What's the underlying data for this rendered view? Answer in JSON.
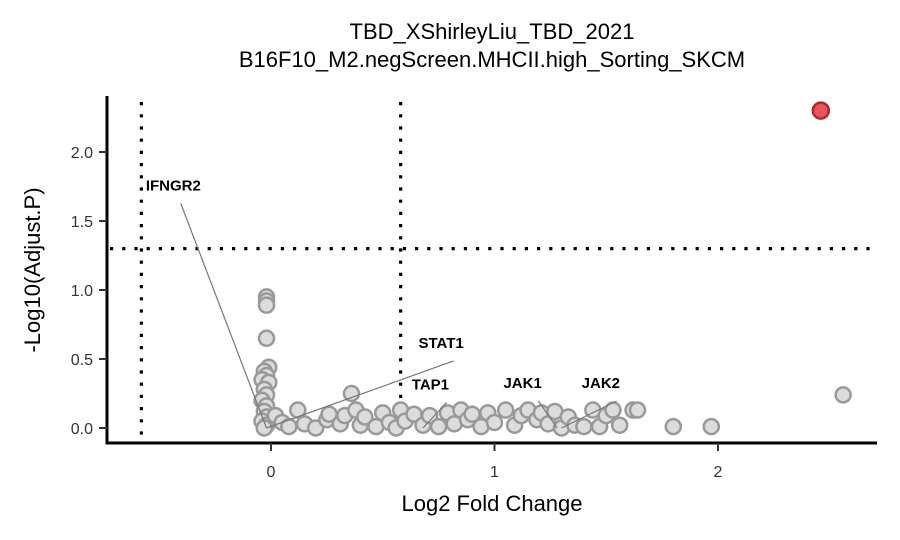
{
  "chart_data": {
    "type": "scatter",
    "title": "TBD_XShirleyLiu_TBD_2021",
    "subtitle": "B16F10_M2.negScreen.MHCII.high_Sorting_SKCM",
    "xlabel": "Log2 Fold Change",
    "ylabel": "-Log10(Adjust.P)",
    "xlim": [
      -0.75,
      2.7
    ],
    "ylim": [
      -0.1,
      2.4
    ],
    "x_ticks": [
      "0",
      "1",
      "2"
    ],
    "x_tick_values": [
      0,
      1,
      2
    ],
    "y_ticks": [
      "0.0",
      "0.5",
      "1.0",
      "1.5",
      "2.0"
    ],
    "y_tick_values": [
      0.0,
      0.5,
      1.0,
      1.5,
      2.0
    ],
    "grid": false,
    "thresholds": {
      "log2fc_low": -0.58,
      "log2fc_high": 0.58,
      "neg_log10_p": 1.3
    },
    "colors": {
      "significant_up": "#e8555a",
      "significant_stroke": "#b02a2a",
      "not_significant": "#dcdcdc",
      "not_significant_stroke": "#999999"
    },
    "significant_points": [
      {
        "x": 2.46,
        "y": 2.3
      }
    ],
    "points": [
      {
        "x": -0.02,
        "y": 0.95
      },
      {
        "x": -0.02,
        "y": 0.92
      },
      {
        "x": -0.02,
        "y": 0.89
      },
      {
        "x": -0.02,
        "y": 0.65
      },
      {
        "x": -0.01,
        "y": 0.44
      },
      {
        "x": -0.03,
        "y": 0.41
      },
      {
        "x": -0.02,
        "y": 0.38
      },
      {
        "x": -0.04,
        "y": 0.35
      },
      {
        "x": -0.01,
        "y": 0.33
      },
      {
        "x": -0.03,
        "y": 0.28
      },
      {
        "x": -0.02,
        "y": 0.24
      },
      {
        "x": -0.04,
        "y": 0.2
      },
      {
        "x": -0.02,
        "y": 0.16
      },
      {
        "x": -0.03,
        "y": 0.12
      },
      {
        "x": -0.02,
        "y": 0.08
      },
      {
        "x": -0.04,
        "y": 0.05
      },
      {
        "x": -0.02,
        "y": 0.02
      },
      {
        "x": -0.03,
        "y": 0.0
      },
      {
        "x": 0.02,
        "y": 0.09
      },
      {
        "x": 0.05,
        "y": 0.04
      },
      {
        "x": 0.08,
        "y": 0.01
      },
      {
        "x": 0.12,
        "y": 0.13
      },
      {
        "x": 0.15,
        "y": 0.03
      },
      {
        "x": 0.2,
        "y": 0.0
      },
      {
        "x": 0.25,
        "y": 0.06
      },
      {
        "x": 0.26,
        "y": 0.1
      },
      {
        "x": 0.31,
        "y": 0.03
      },
      {
        "x": 0.33,
        "y": 0.09
      },
      {
        "x": 0.36,
        "y": 0.25
      },
      {
        "x": 0.38,
        "y": 0.13
      },
      {
        "x": 0.4,
        "y": 0.02
      },
      {
        "x": 0.42,
        "y": 0.08
      },
      {
        "x": 0.47,
        "y": 0.01
      },
      {
        "x": 0.5,
        "y": 0.11
      },
      {
        "x": 0.53,
        "y": 0.04
      },
      {
        "x": 0.56,
        "y": 0.0
      },
      {
        "x": 0.58,
        "y": 0.13
      },
      {
        "x": 0.6,
        "y": 0.05
      },
      {
        "x": 0.64,
        "y": 0.1
      },
      {
        "x": 0.68,
        "y": 0.02
      },
      {
        "x": 0.71,
        "y": 0.09
      },
      {
        "x": 0.75,
        "y": 0.01
      },
      {
        "x": 0.79,
        "y": 0.11
      },
      {
        "x": 0.82,
        "y": 0.03
      },
      {
        "x": 0.85,
        "y": 0.13
      },
      {
        "x": 0.88,
        "y": 0.06
      },
      {
        "x": 0.9,
        "y": 0.1
      },
      {
        "x": 0.94,
        "y": 0.01
      },
      {
        "x": 0.97,
        "y": 0.11
      },
      {
        "x": 1.0,
        "y": 0.04
      },
      {
        "x": 1.05,
        "y": 0.13
      },
      {
        "x": 1.09,
        "y": 0.02
      },
      {
        "x": 1.12,
        "y": 0.09
      },
      {
        "x": 1.15,
        "y": 0.13
      },
      {
        "x": 1.19,
        "y": 0.06
      },
      {
        "x": 1.21,
        "y": 0.11
      },
      {
        "x": 1.24,
        "y": 0.03
      },
      {
        "x": 1.27,
        "y": 0.12
      },
      {
        "x": 1.3,
        "y": 0.0
      },
      {
        "x": 1.33,
        "y": 0.08
      },
      {
        "x": 1.36,
        "y": 0.02
      },
      {
        "x": 1.4,
        "y": 0.01
      },
      {
        "x": 1.44,
        "y": 0.13
      },
      {
        "x": 1.47,
        "y": 0.01
      },
      {
        "x": 1.5,
        "y": 0.09
      },
      {
        "x": 1.53,
        "y": 0.13
      },
      {
        "x": 1.56,
        "y": 0.02
      },
      {
        "x": 1.62,
        "y": 0.13
      },
      {
        "x": 1.64,
        "y": 0.13
      },
      {
        "x": 1.8,
        "y": 0.01
      },
      {
        "x": 1.97,
        "y": 0.01
      },
      {
        "x": 2.56,
        "y": 0.24
      }
    ],
    "labels": [
      {
        "text": "IFNGR2",
        "x": -0.56,
        "y": 1.72,
        "px": -0.02,
        "py": 0.0
      },
      {
        "text": "STAT1",
        "x": 0.66,
        "y": 0.58,
        "px": -0.02,
        "py": 0.0
      },
      {
        "text": "TAP1",
        "x": 0.63,
        "y": 0.28,
        "px": 0.68,
        "py": 0.0
      },
      {
        "text": "JAK1",
        "x": 1.04,
        "y": 0.29,
        "px": 1.28,
        "py": 0.0
      },
      {
        "text": "JAK2",
        "x": 1.39,
        "y": 0.29,
        "px": 1.3,
        "py": 0.0
      }
    ]
  }
}
